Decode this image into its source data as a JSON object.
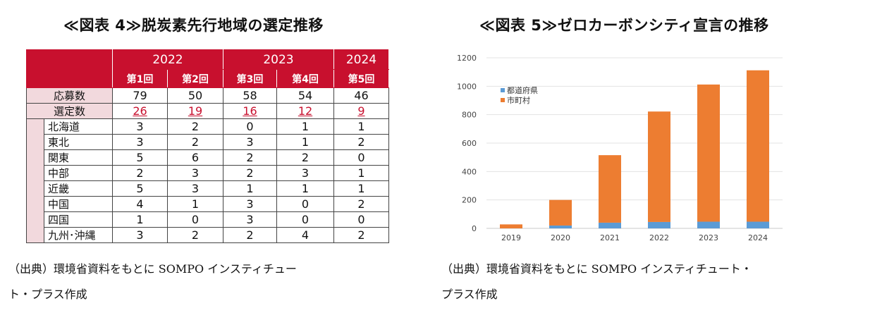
{
  "left": {
    "title": "≪図表 4≫脱炭素先行地域の選定推移",
    "source": [
      "（出典）環境省資料をもとに SOMPO インスティチュー",
      "ト・プラス作成"
    ],
    "table": {
      "years": [
        {
          "label": "2022",
          "span": 2
        },
        {
          "label": "2023",
          "span": 2
        },
        {
          "label": "2024",
          "span": 1
        }
      ],
      "rounds": [
        "第1回",
        "第2回",
        "第3回",
        "第4回",
        "第5回"
      ],
      "rows": [
        {
          "label": "応募数",
          "kind": "summary",
          "values": [
            "79",
            "50",
            "58",
            "54",
            "46"
          ]
        },
        {
          "label": "選定数",
          "kind": "selected",
          "values": [
            "26",
            "19",
            "16",
            "12",
            "9"
          ]
        },
        {
          "label": "北海道",
          "kind": "region",
          "values": [
            "3",
            "2",
            "0",
            "1",
            "1"
          ]
        },
        {
          "label": "東北",
          "kind": "region",
          "values": [
            "3",
            "2",
            "3",
            "1",
            "2"
          ]
        },
        {
          "label": "関東",
          "kind": "region",
          "values": [
            "5",
            "6",
            "2",
            "2",
            "0"
          ]
        },
        {
          "label": "中部",
          "kind": "region",
          "values": [
            "2",
            "3",
            "2",
            "3",
            "1"
          ]
        },
        {
          "label": "近畿",
          "kind": "region",
          "values": [
            "5",
            "3",
            "1",
            "1",
            "1"
          ]
        },
        {
          "label": "中国",
          "kind": "region",
          "values": [
            "4",
            "1",
            "3",
            "0",
            "2"
          ]
        },
        {
          "label": "四国",
          "kind": "region",
          "values": [
            "1",
            "0",
            "3",
            "0",
            "0"
          ]
        },
        {
          "label": "九州･沖縄",
          "kind": "region",
          "values": [
            "3",
            "2",
            "2",
            "4",
            "2"
          ]
        }
      ],
      "colors": {
        "header": "#c8102e",
        "pink": "#f2d9dd",
        "highlight": "#c8102e"
      }
    }
  },
  "right": {
    "title": "≪図表 5≫ゼロカーボンシティ宣言の推移",
    "source": [
      "（出典）環境省資料をもとに SOMPO インスティチュート・",
      "プラス作成"
    ]
  },
  "chart_data": {
    "type": "bar",
    "stacked": true,
    "title": "",
    "xlabel": "",
    "ylabel": "",
    "categories": [
      "2019",
      "2020",
      "2021",
      "2022",
      "2023",
      "2024"
    ],
    "series": [
      {
        "name": "都道府県",
        "color": "#5b9bd5",
        "values": [
          0,
          20,
          40,
          45,
          47,
          47
        ]
      },
      {
        "name": "市町村",
        "color": "#ed7d31",
        "values": [
          28,
          180,
          475,
          777,
          965,
          1065
        ]
      }
    ],
    "ylim": [
      0,
      1200
    ],
    "yticks": [
      0,
      200,
      400,
      600,
      800,
      1000,
      1200
    ],
    "grid": true,
    "legend": "top-left"
  }
}
